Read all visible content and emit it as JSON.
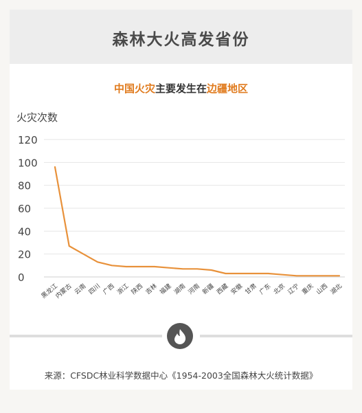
{
  "header": {
    "title": "森林大火高发省份"
  },
  "subtitle": {
    "part1": "中国火灾",
    "part2": "主要发生在",
    "part3": "边疆地区"
  },
  "source": "来源：CFSDC林业科学数据中心《1954-2003全国森林大火统计数据》",
  "colors": {
    "line": "#e8913a",
    "accent": "#e07b1e",
    "grid": "#e6e6e6"
  },
  "chart_data": {
    "type": "line",
    "title": "中国火灾主要发生在边疆地区",
    "ylabel": "火灾次数",
    "xlabel": "",
    "ylim": [
      0,
      120
    ],
    "yticks": [
      0,
      20,
      40,
      60,
      80,
      100,
      120
    ],
    "grid": true,
    "categories": [
      "黑龙江",
      "内蒙古",
      "云南",
      "四川",
      "广西",
      "浙江",
      "陕西",
      "吉林",
      "福建",
      "湖南",
      "河南",
      "新疆",
      "西藏",
      "安徽",
      "甘肃",
      "广东",
      "北京",
      "辽宁",
      "重庆",
      "山西",
      "湖北"
    ],
    "values": [
      96,
      27,
      20,
      13,
      10,
      9,
      9,
      9,
      8,
      7,
      7,
      6,
      3,
      3,
      3,
      3,
      2,
      1,
      1,
      1,
      1
    ]
  }
}
